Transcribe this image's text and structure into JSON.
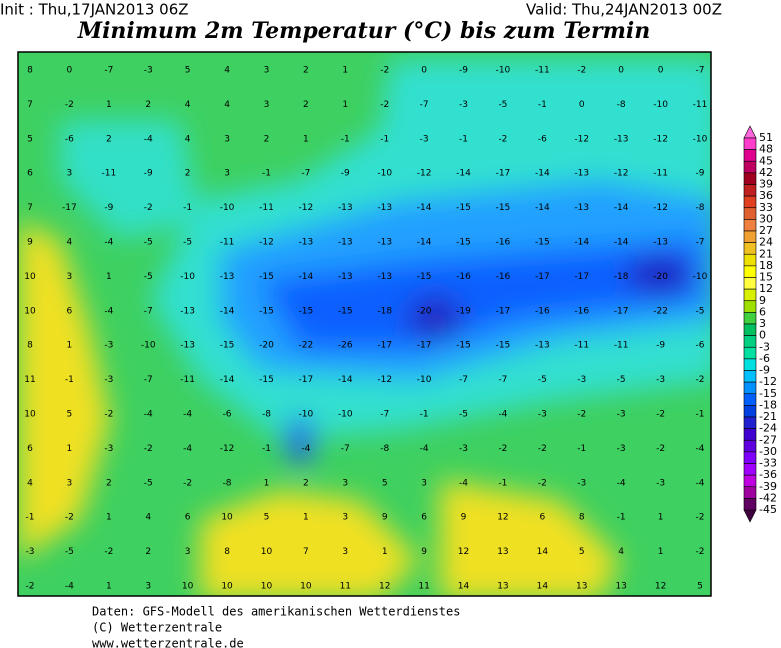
{
  "header": {
    "init": "Init : Thu,17JAN2013 06Z",
    "valid": "Valid: Thu,24JAN2013 00Z",
    "title": "Minimum 2m Temperatur (°C) bis zum Termin"
  },
  "map": {
    "values": [
      [
        8,
        0,
        -7,
        -3,
        5,
        4,
        3,
        2,
        1,
        -2,
        0,
        -9,
        -10,
        -11,
        -2,
        0,
        0,
        -7
      ],
      [
        7,
        -2,
        1,
        2,
        4,
        4,
        3,
        2,
        1,
        -2,
        -7,
        -3,
        -5,
        -1,
        0,
        -8,
        -10,
        -11
      ],
      [
        5,
        -6,
        2,
        -4,
        4,
        3,
        2,
        1,
        -1,
        -1,
        -3,
        -1,
        -2,
        -6,
        -12,
        -13,
        -12,
        -10
      ],
      [
        6,
        3,
        -11,
        -9,
        2,
        3,
        -1,
        -7,
        -9,
        -10,
        -12,
        -14,
        -17,
        -14,
        -13,
        -12,
        -11,
        -9
      ],
      [
        7,
        -17,
        -9,
        -2,
        -1,
        -10,
        -11,
        -12,
        -13,
        -13,
        -14,
        -15,
        -15,
        -14,
        -13,
        -14,
        -12,
        -8
      ],
      [
        9,
        4,
        -4,
        -5,
        -5,
        -11,
        -12,
        -13,
        -13,
        -13,
        -14,
        -15,
        -16,
        -15,
        -14,
        -14,
        -13,
        -7
      ],
      [
        10,
        3,
        1,
        -5,
        -10,
        -13,
        -15,
        -14,
        -13,
        -13,
        -15,
        -16,
        -16,
        -17,
        -17,
        -18,
        -20,
        -10
      ],
      [
        10,
        6,
        -4,
        -7,
        -13,
        -14,
        -15,
        -15,
        -15,
        -18,
        -20,
        -19,
        -17,
        -16,
        -16,
        -17,
        -22,
        -5
      ],
      [
        8,
        1,
        -3,
        -10,
        -13,
        -15,
        -20,
        -22,
        -26,
        -17,
        -17,
        -15,
        -15,
        -13,
        -11,
        -11,
        -9,
        -6
      ],
      [
        11,
        -1,
        -3,
        -7,
        -11,
        -14,
        -15,
        -17,
        -14,
        -12,
        -10,
        -7,
        -7,
        -5,
        -3,
        -5,
        -3,
        -2
      ],
      [
        10,
        5,
        -2,
        -4,
        -4,
        -6,
        -8,
        -10,
        -10,
        -7,
        -1,
        -5,
        -4,
        -3,
        -2,
        -3,
        -2,
        -1
      ],
      [
        6,
        1,
        -3,
        -2,
        -4,
        -12,
        -1,
        -4,
        -7,
        -8,
        -4,
        -3,
        -2,
        -2,
        -1,
        -3,
        -2,
        -4
      ],
      [
        4,
        3,
        2,
        -5,
        -2,
        -8,
        1,
        2,
        3,
        5,
        3,
        -4,
        -1,
        -2,
        -3,
        -4,
        -3,
        -4
      ],
      [
        -1,
        -2,
        1,
        4,
        6,
        10,
        5,
        1,
        3,
        9,
        6,
        9,
        12,
        6,
        8,
        -1,
        1,
        -2
      ],
      [
        -3,
        -5,
        -2,
        2,
        3,
        8,
        10,
        7,
        3,
        1,
        9,
        12,
        13,
        14,
        5,
        4,
        1,
        -2
      ],
      [
        -2,
        -4,
        1,
        3,
        10,
        10,
        10,
        10,
        11,
        12,
        11,
        14,
        13,
        14,
        13,
        13,
        12,
        5
      ]
    ]
  },
  "colorbar": {
    "levels": [
      51,
      48,
      45,
      42,
      39,
      36,
      33,
      30,
      27,
      24,
      21,
      18,
      15,
      12,
      9,
      6,
      3,
      0,
      -3,
      -6,
      -9,
      -12,
      -15,
      -18,
      -21,
      -24,
      -27,
      -30,
      -33,
      -36,
      -39,
      -42,
      -45
    ],
    "colors": [
      "#ff3ccc",
      "#e00090",
      "#c00060",
      "#a00020",
      "#c02020",
      "#e04020",
      "#e06030",
      "#f08040",
      "#f0a030",
      "#f0c020",
      "#f0e000",
      "#ffff00",
      "#ffff40",
      "#d8f000",
      "#a0e000",
      "#40d040",
      "#00c060",
      "#00d080",
      "#00e0a0",
      "#00e0e0",
      "#00c0ff",
      "#0090ff",
      "#0060ff",
      "#0040e0",
      "#2020d0",
      "#4000d0",
      "#6000e0",
      "#8000ff",
      "#a000ff",
      "#c000e0",
      "#a000a0",
      "#600060"
    ],
    "top_color": "#ff66dd",
    "bottom_color": "#400040"
  },
  "footer": {
    "line1": "Daten: GFS-Modell des amerikanischen Wetterdienstes",
    "line2": "(C) Wetterzentrale",
    "line3": "www.wetterzentrale.de"
  }
}
